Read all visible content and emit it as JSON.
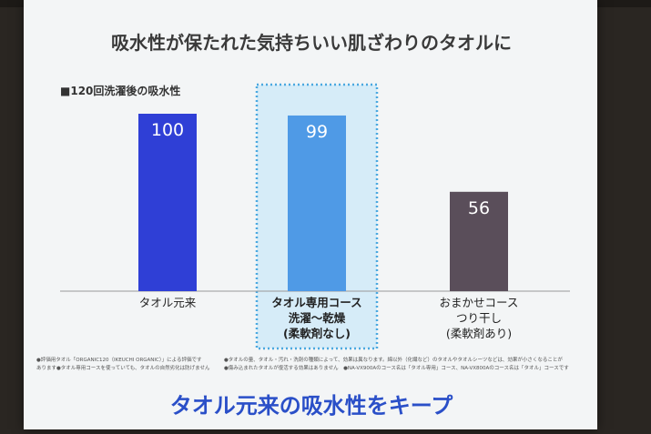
{
  "colors": {
    "bar_1": "#2f3fd6",
    "bar_2": "#4f9ae6",
    "bar_3": "#5a4e5a",
    "highlight_fill": "#d6ecf8",
    "highlight_border": "#4aa8e0",
    "title": "#3a3a3a",
    "tagline": "#2a4fc8"
  },
  "chart_data": {
    "type": "bar",
    "title": "吸水性が保たれた気持ちいい肌ざわりのタオルに",
    "legend": "■120回洗濯後の吸水性",
    "categories": [
      [
        "タオル元来"
      ],
      [
        "タオル専用コース",
        "洗濯～乾燥",
        "(柔軟剤なし)"
      ],
      [
        "おまかせコース",
        "つり干し",
        "(柔軟剤あり)"
      ]
    ],
    "values": [
      100,
      99,
      56
    ],
    "ylim": [
      0,
      100
    ],
    "highlighted_index": 1
  },
  "footnotes": {
    "left_1": "●評価用タオル「ORGANIC120（IKEUCHI ORGANIC）」による評価です",
    "left_2": "あります●タオル専用コースを使っていても、タオルの自然劣化は防げません",
    "right_1": "●タオルの量、タオル・汚れ・洗剤の種類によって、効果は異なります。綿以外（化繊など）のタオルやタオルシーツなどは、効果が小さくなることが",
    "right_2": "●傷み込まれたタオルが復活する効果はありません　●NA-VX900Aのコース名は「タオル専用」コース、NA-VX800Aのコース名は「タオル」コースです"
  },
  "tagline": "タオル元来の吸水性をキープ"
}
